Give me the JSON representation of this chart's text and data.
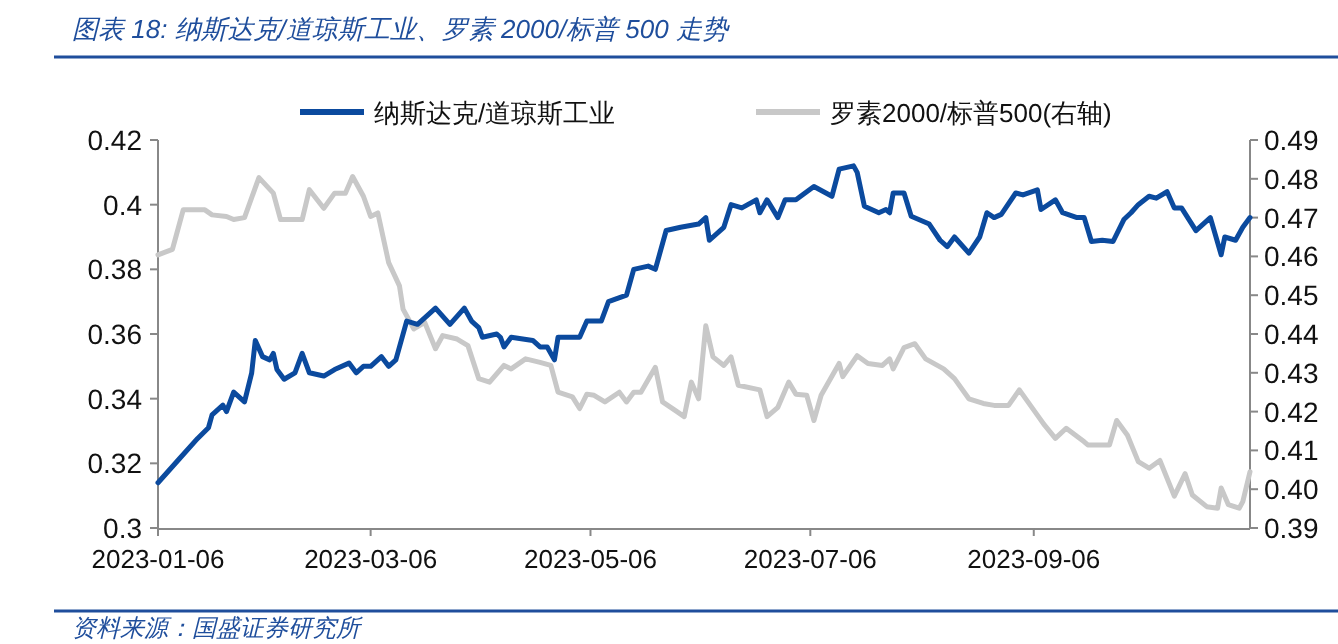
{
  "chart_data": {
    "type": "line",
    "title": "图表 18: 纳斯达克/道琼斯工业、罗素 2000/标普 500 走势",
    "annotations": [
      "资料来源：国盛证券研究所"
    ],
    "legend": "top",
    "grid": false,
    "line_style": "solid",
    "marker": "none",
    "xlim": [
      "2023-01-06",
      "2023-11-05"
    ],
    "xticks": [
      {
        "value": "2023-01-06",
        "label": "2023-01-06"
      },
      {
        "value": "2023-03-06",
        "label": "2023-03-06"
      },
      {
        "value": "2023-05-06",
        "label": "2023-05-06"
      },
      {
        "value": "2023-07-06",
        "label": "2023-07-06"
      },
      {
        "value": "2023-09-06",
        "label": "2023-09-06"
      }
    ],
    "ylim": [
      0.3,
      0.42
    ],
    "yticks": [
      0.3,
      0.32,
      0.34,
      0.36,
      0.38,
      0.4,
      0.42
    ],
    "y2lim": [
      0.39,
      0.49
    ],
    "y2ticks": [
      0.39,
      {
        "value": 0.4,
        "label": "0.40"
      },
      0.41,
      0.42,
      0.43,
      0.44,
      0.45,
      0.46,
      0.47,
      0.48,
      0.49
    ],
    "series": [
      {
        "name": "纳斯达克/道琼斯工业",
        "color": "#0b4a9e",
        "x": [
          "2023-01-06",
          "2023-01-12",
          "2023-01-17",
          "2023-01-20",
          "2023-01-21",
          "2023-01-24",
          "2023-01-25",
          "2023-01-27",
          "2023-01-30",
          "2023-02-01",
          "2023-02-02",
          "2023-02-04",
          "2023-02-06",
          "2023-02-07",
          "2023-02-08",
          "2023-02-10",
          "2023-02-13",
          "2023-02-15",
          "2023-02-17",
          "2023-02-21",
          "2023-02-24",
          "2023-02-28",
          "2023-03-02",
          "2023-03-04",
          "2023-03-06",
          "2023-03-09",
          "2023-03-11",
          "2023-03-13",
          "2023-03-16",
          "2023-03-19",
          "2023-03-24",
          "2023-03-28",
          "2023-04-01",
          "2023-04-03",
          "2023-04-05",
          "2023-04-06",
          "2023-04-10",
          "2023-04-11",
          "2023-04-12",
          "2023-04-14",
          "2023-04-20",
          "2023-04-22",
          "2023-04-24",
          "2023-04-26",
          "2023-04-27",
          "2023-05-03",
          "2023-05-05",
          "2023-05-09",
          "2023-05-11",
          "2023-05-16",
          "2023-05-18",
          "2023-05-22",
          "2023-05-24",
          "2023-05-27",
          "2023-05-31",
          "2023-06-05",
          "2023-06-07",
          "2023-06-08",
          "2023-06-12",
          "2023-06-14",
          "2023-06-17",
          "2023-06-21",
          "2023-06-22",
          "2023-06-24",
          "2023-06-27",
          "2023-06-29",
          "2023-07-02",
          "2023-07-07",
          "2023-07-12",
          "2023-07-14",
          "2023-07-18",
          "2023-07-19",
          "2023-07-21",
          "2023-07-25",
          "2023-07-27",
          "2023-07-28",
          "2023-07-29",
          "2023-08-01",
          "2023-08-03",
          "2023-08-08",
          "2023-08-11",
          "2023-08-13",
          "2023-08-15",
          "2023-08-19",
          "2023-08-22",
          "2023-08-24",
          "2023-08-26",
          "2023-08-28",
          "2023-09-01",
          "2023-09-03",
          "2023-09-07",
          "2023-09-08",
          "2023-09-12",
          "2023-09-14",
          "2023-09-18",
          "2023-09-20",
          "2023-09-22",
          "2023-09-25",
          "2023-09-28",
          "2023-10-01",
          "2023-10-03",
          "2023-10-05",
          "2023-10-08",
          "2023-10-10",
          "2023-10-13",
          "2023-10-15",
          "2023-10-17",
          "2023-10-21",
          "2023-10-25",
          "2023-10-28",
          "2023-10-29",
          "2023-11-01",
          "2023-11-03",
          "2023-11-05"
        ],
        "values": [
          0.314,
          0.3215,
          0.3277,
          0.331,
          0.335,
          0.338,
          0.336,
          0.342,
          0.339,
          0.348,
          0.358,
          0.353,
          0.352,
          0.354,
          0.349,
          0.346,
          0.348,
          0.354,
          0.348,
          0.347,
          0.349,
          0.351,
          0.348,
          0.35,
          0.35,
          0.353,
          0.35,
          0.352,
          0.364,
          0.363,
          0.368,
          0.363,
          0.368,
          0.364,
          0.362,
          0.359,
          0.36,
          0.359,
          0.356,
          0.359,
          0.358,
          0.356,
          0.356,
          0.352,
          0.359,
          0.359,
          0.364,
          0.364,
          0.37,
          0.372,
          0.38,
          0.381,
          0.38,
          0.392,
          0.393,
          0.394,
          0.396,
          0.389,
          0.393,
          0.4,
          0.399,
          0.4015,
          0.3975,
          0.4015,
          0.396,
          0.4015,
          0.4015,
          0.4056,
          0.4026,
          0.411,
          0.412,
          0.41,
          0.3995,
          0.3975,
          0.3985,
          0.3975,
          0.4036,
          0.4036,
          0.3964,
          0.394,
          0.389,
          0.387,
          0.39,
          0.385,
          0.39,
          0.3975,
          0.396,
          0.397,
          0.4036,
          0.403,
          0.4046,
          0.3985,
          0.4015,
          0.3975,
          0.396,
          0.396,
          0.3886,
          0.389,
          0.3886,
          0.3954,
          0.3975,
          0.4,
          0.4026,
          0.402,
          0.404,
          0.399,
          0.399,
          0.392,
          0.396,
          0.3845,
          0.39,
          0.389,
          0.393,
          0.396
        ]
      },
      {
        "name": "罗素2000/标普500(右轴)",
        "color": "#c8c8c8",
        "axis": "y2",
        "x": [
          "2023-01-06",
          "2023-01-10",
          "2023-01-11",
          "2023-01-13",
          "2023-01-19",
          "2023-01-21",
          "2023-01-25",
          "2023-01-27",
          "2023-01-30",
          "2023-02-03",
          "2023-02-07",
          "2023-02-09",
          "2023-02-15",
          "2023-02-17",
          "2023-02-21",
          "2023-02-24",
          "2023-02-27",
          "2023-03-01",
          "2023-03-04",
          "2023-03-06",
          "2023-03-08",
          "2023-03-11",
          "2023-03-14",
          "2023-03-15",
          "2023-03-18",
          "2023-03-21",
          "2023-03-24",
          "2023-03-26",
          "2023-03-30",
          "2023-04-02",
          "2023-04-05",
          "2023-04-08",
          "2023-04-12",
          "2023-04-14",
          "2023-04-18",
          "2023-04-22",
          "2023-04-25",
          "2023-04-27",
          "2023-05-01",
          "2023-05-03",
          "2023-05-05",
          "2023-05-07",
          "2023-05-10",
          "2023-05-14",
          "2023-05-16",
          "2023-05-18",
          "2023-05-20",
          "2023-05-24",
          "2023-05-26",
          "2023-05-30",
          "2023-06-01",
          "2023-06-03",
          "2023-06-05",
          "2023-06-07",
          "2023-06-09",
          "2023-06-12",
          "2023-06-14",
          "2023-06-16",
          "2023-06-22",
          "2023-06-24",
          "2023-06-27",
          "2023-06-30",
          "2023-07-02",
          "2023-07-05",
          "2023-07-07",
          "2023-07-09",
          "2023-07-14",
          "2023-07-15",
          "2023-07-19",
          "2023-07-22",
          "2023-07-26",
          "2023-07-28",
          "2023-07-29",
          "2023-08-01",
          "2023-08-04",
          "2023-08-07",
          "2023-08-12",
          "2023-08-15",
          "2023-08-19",
          "2023-08-23",
          "2023-08-26",
          "2023-08-30",
          "2023-09-02",
          "2023-09-07",
          "2023-09-09",
          "2023-09-12",
          "2023-09-15",
          "2023-09-20",
          "2023-09-21",
          "2023-09-27",
          "2023-09-29",
          "2023-10-02",
          "2023-10-05",
          "2023-10-08",
          "2023-10-11",
          "2023-10-15",
          "2023-10-18",
          "2023-10-20",
          "2023-10-24",
          "2023-10-27",
          "2023-10-28",
          "2023-10-30",
          "2023-11-02",
          "2023-11-03",
          "2023-11-05"
        ],
        "values": [
          0.4604,
          0.4618,
          0.4652,
          0.472,
          0.472,
          0.4707,
          0.4703,
          0.4695,
          0.47,
          0.4803,
          0.4763,
          0.4695,
          0.4695,
          0.4772,
          0.4724,
          0.4763,
          0.4763,
          0.4806,
          0.4755,
          0.4703,
          0.4712,
          0.4584,
          0.4524,
          0.4464,
          0.4413,
          0.443,
          0.4362,
          0.4396,
          0.4387,
          0.437,
          0.4285,
          0.4276,
          0.4319,
          0.431,
          0.4336,
          0.4327,
          0.4319,
          0.425,
          0.4238,
          0.4208,
          0.4245,
          0.4242,
          0.4225,
          0.425,
          0.4225,
          0.425,
          0.425,
          0.4314,
          0.4225,
          0.42,
          0.4187,
          0.4276,
          0.4233,
          0.4421,
          0.4341,
          0.4319,
          0.4341,
          0.4268,
          0.4256,
          0.4187,
          0.4211,
          0.4276,
          0.4245,
          0.4242,
          0.4177,
          0.4242,
          0.4324,
          0.429,
          0.4344,
          0.4324,
          0.4319,
          0.4336,
          0.431,
          0.4365,
          0.4375,
          0.4336,
          0.431,
          0.4285,
          0.4233,
          0.4221,
          0.4216,
          0.4216,
          0.4256,
          0.4191,
          0.4165,
          0.4131,
          0.4157,
          0.4122,
          0.4114,
          0.4114,
          0.4177,
          0.4139,
          0.4071,
          0.4054,
          0.4074,
          0.3982,
          0.404,
          0.3985,
          0.3955,
          0.3951,
          0.4003,
          0.396,
          0.3951,
          0.3968,
          0.4045
        ]
      }
    ]
  }
}
